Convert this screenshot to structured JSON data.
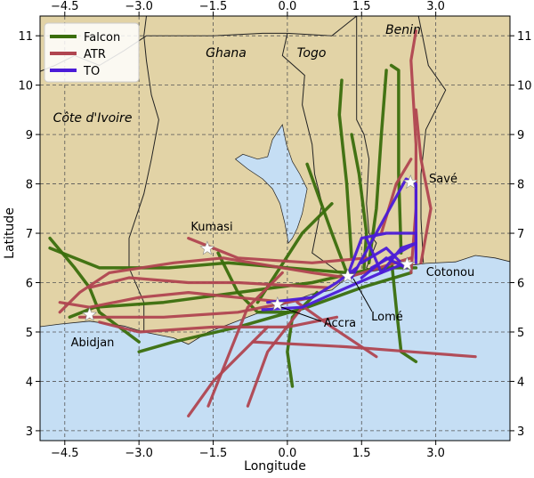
{
  "chart_data": {
    "type": "map",
    "xlabel": "Longitude",
    "ylabel": "Latitude",
    "xlim": [
      -5.0,
      4.5
    ],
    "ylim": [
      2.8,
      11.4
    ],
    "xticks": [
      -4.5,
      -3.0,
      -1.5,
      0.0,
      1.5,
      3.0
    ],
    "xtick_labels": [
      "−4.5",
      "−3.0",
      "−1.5",
      "0.0",
      "1.5",
      "3.0"
    ],
    "yticks": [
      3,
      4,
      5,
      6,
      7,
      8,
      9,
      10,
      11
    ],
    "ytick_labels": [
      "3",
      "4",
      "5",
      "6",
      "7",
      "8",
      "9",
      "10",
      "11"
    ],
    "grid": true,
    "legend_position": "top-left",
    "colors": {
      "land": "#e2d3a6",
      "sea": "#c5def4",
      "lake": "#c5def4",
      "falcon": "#3a6e0c",
      "atr": "#b04550",
      "to": "#4b1bd8"
    },
    "series": [
      {
        "name": "Falcon",
        "color": "#3a6e0c",
        "tracks": [
          [
            [
              -4.4,
              5.3
            ],
            [
              -3.9,
              5.5
            ],
            [
              -2.5,
              5.6
            ],
            [
              -1.0,
              5.8
            ],
            [
              0.5,
              6.0
            ],
            [
              1.8,
              6.3
            ],
            [
              2.6,
              6.3
            ]
          ],
          [
            [
              -3.0,
              4.6
            ],
            [
              -2.3,
              4.8
            ],
            [
              -1.0,
              5.1
            ],
            [
              0.4,
              5.5
            ],
            [
              1.5,
              5.9
            ],
            [
              2.5,
              6.2
            ]
          ],
          [
            [
              -4.8,
              6.9
            ],
            [
              -4.3,
              6.3
            ],
            [
              -4.0,
              5.9
            ],
            [
              -3.8,
              5.4
            ],
            [
              -3.0,
              4.8
            ]
          ],
          [
            [
              -4.8,
              6.7
            ],
            [
              -3.8,
              6.3
            ],
            [
              -2.4,
              6.3
            ],
            [
              -1.2,
              6.4
            ],
            [
              0.0,
              6.3
            ],
            [
              1.2,
              6.2
            ]
          ],
          [
            [
              -1.4,
              6.6
            ],
            [
              -1.0,
              5.8
            ],
            [
              -0.6,
              5.4
            ],
            [
              0.2,
              5.4
            ]
          ],
          [
            [
              -0.6,
              5.6
            ],
            [
              0.3,
              7.0
            ],
            [
              0.9,
              7.6
            ]
          ],
          [
            [
              0.4,
              8.4
            ],
            [
              0.9,
              7.0
            ],
            [
              1.2,
              6.2
            ]
          ],
          [
            [
              1.3,
              9.0
            ],
            [
              1.45,
              8.2
            ],
            [
              1.6,
              7.0
            ],
            [
              1.55,
              6.3
            ]
          ],
          [
            [
              2.0,
              10.3
            ],
            [
              1.9,
              9.0
            ],
            [
              1.8,
              7.5
            ],
            [
              1.65,
              6.4
            ]
          ],
          [
            [
              1.1,
              10.1
            ],
            [
              1.05,
              9.4
            ],
            [
              1.2,
              8.0
            ],
            [
              1.3,
              6.5
            ]
          ],
          [
            [
              2.1,
              10.4
            ],
            [
              2.25,
              10.3
            ],
            [
              2.25,
              8.2
            ],
            [
              2.3,
              6.6
            ]
          ],
          [
            [
              0.1,
              3.9
            ],
            [
              0.0,
              4.6
            ],
            [
              0.1,
              5.3
            ],
            [
              0.6,
              5.8
            ]
          ],
          [
            [
              2.1,
              6.5
            ],
            [
              2.2,
              5.5
            ],
            [
              2.3,
              4.6
            ],
            [
              2.6,
              4.4
            ]
          ]
        ]
      },
      {
        "name": "ATR",
        "color": "#b04550",
        "tracks": [
          [
            [
              -4.6,
              5.4
            ],
            [
              -4.2,
              5.8
            ],
            [
              -3.6,
              6.2
            ],
            [
              -2.3,
              6.4
            ],
            [
              -1.3,
              6.5
            ],
            [
              0.5,
              6.2
            ],
            [
              1.2,
              6.1
            ],
            [
              2.5,
              6.5
            ]
          ],
          [
            [
              -4.0,
              5.9
            ],
            [
              -3.2,
              6.1
            ],
            [
              -2.0,
              6.0
            ],
            [
              -1.0,
              6.0
            ],
            [
              0.8,
              5.9
            ]
          ],
          [
            [
              -3.8,
              5.2
            ],
            [
              -3.0,
              5.0
            ],
            [
              -1.5,
              5.1
            ],
            [
              0.0,
              5.1
            ],
            [
              1.0,
              5.3
            ]
          ],
          [
            [
              -1.6,
              3.5
            ],
            [
              -1.2,
              4.5
            ],
            [
              -0.8,
              5.5
            ],
            [
              -0.1,
              6.2
            ]
          ],
          [
            [
              -2.0,
              3.3
            ],
            [
              -1.5,
              4.0
            ],
            [
              -0.4,
              5.1
            ]
          ],
          [
            [
              -0.8,
              3.5
            ],
            [
              -0.4,
              4.6
            ],
            [
              0.3,
              5.5
            ]
          ],
          [
            [
              1.8,
              4.5
            ],
            [
              0.9,
              5.1
            ],
            [
              0.2,
              5.6
            ]
          ],
          [
            [
              3.8,
              4.5
            ],
            [
              2.5,
              4.6
            ],
            [
              1.2,
              4.7
            ],
            [
              -0.7,
              4.8
            ]
          ],
          [
            [
              2.5,
              6.2
            ],
            [
              2.6,
              7.5
            ],
            [
              2.6,
              8.8
            ],
            [
              2.5,
              10.5
            ],
            [
              2.6,
              11.1
            ]
          ],
          [
            [
              2.6,
              9.5
            ],
            [
              2.7,
              8.5
            ],
            [
              2.9,
              7.5
            ],
            [
              2.7,
              6.4
            ]
          ],
          [
            [
              1.9,
              7.0
            ],
            [
              2.2,
              8.0
            ],
            [
              2.5,
              8.5
            ]
          ],
          [
            [
              -4.6,
              5.6
            ],
            [
              -4.0,
              5.5
            ],
            [
              -3.0,
              5.7
            ],
            [
              -2.0,
              5.8
            ],
            [
              -1.0,
              5.7
            ],
            [
              0.0,
              5.6
            ]
          ],
          [
            [
              -2.0,
              6.9
            ],
            [
              -1.0,
              6.5
            ],
            [
              0.5,
              6.4
            ],
            [
              1.6,
              6.5
            ]
          ],
          [
            [
              -4.2,
              5.3
            ],
            [
              -2.5,
              5.3
            ],
            [
              -1.0,
              5.4
            ],
            [
              0.5,
              5.7
            ]
          ]
        ]
      },
      {
        "name": "TO",
        "color": "#4b1bd8",
        "tracks": [
          [
            [
              -0.5,
              5.45
            ],
            [
              0.3,
              5.5
            ],
            [
              1.2,
              5.9
            ],
            [
              1.9,
              6.2
            ],
            [
              2.4,
              6.4
            ]
          ],
          [
            [
              1.2,
              6.1
            ],
            [
              1.5,
              6.9
            ],
            [
              2.0,
              7.0
            ],
            [
              2.6,
              7.0
            ],
            [
              2.6,
              6.4
            ]
          ],
          [
            [
              1.3,
              6.1
            ],
            [
              2.4,
              8.1
            ],
            [
              2.6,
              8.0
            ],
            [
              2.6,
              6.5
            ]
          ],
          [
            [
              1.6,
              6.9
            ],
            [
              1.9,
              6.2
            ],
            [
              2.3,
              6.7
            ],
            [
              2.6,
              6.8
            ],
            [
              1.7,
              6.3
            ]
          ],
          [
            [
              1.5,
              6.1
            ],
            [
              2.0,
              6.5
            ],
            [
              2.4,
              6.3
            ],
            [
              2.0,
              6.7
            ],
            [
              1.5,
              6.4
            ]
          ],
          [
            [
              -0.4,
              5.6
            ],
            [
              0.5,
              5.7
            ],
            [
              1.0,
              6.0
            ],
            [
              1.4,
              6.3
            ]
          ]
        ]
      }
    ],
    "cities": [
      {
        "name": "Abidjan",
        "lon": -4.0,
        "lat": 5.35
      },
      {
        "name": "Kumasi",
        "lon": -1.62,
        "lat": 6.69
      },
      {
        "name": "Accra",
        "lon": -0.2,
        "lat": 5.56
      },
      {
        "name": "Lomé",
        "lon": 1.22,
        "lat": 6.13
      },
      {
        "name": "Cotonou",
        "lon": 2.42,
        "lat": 6.37
      },
      {
        "name": "Savé",
        "lon": 2.49,
        "lat": 8.03
      }
    ],
    "countries": [
      "Côte d'Ivoire",
      "Ghana",
      "Togo",
      "Benin"
    ]
  }
}
